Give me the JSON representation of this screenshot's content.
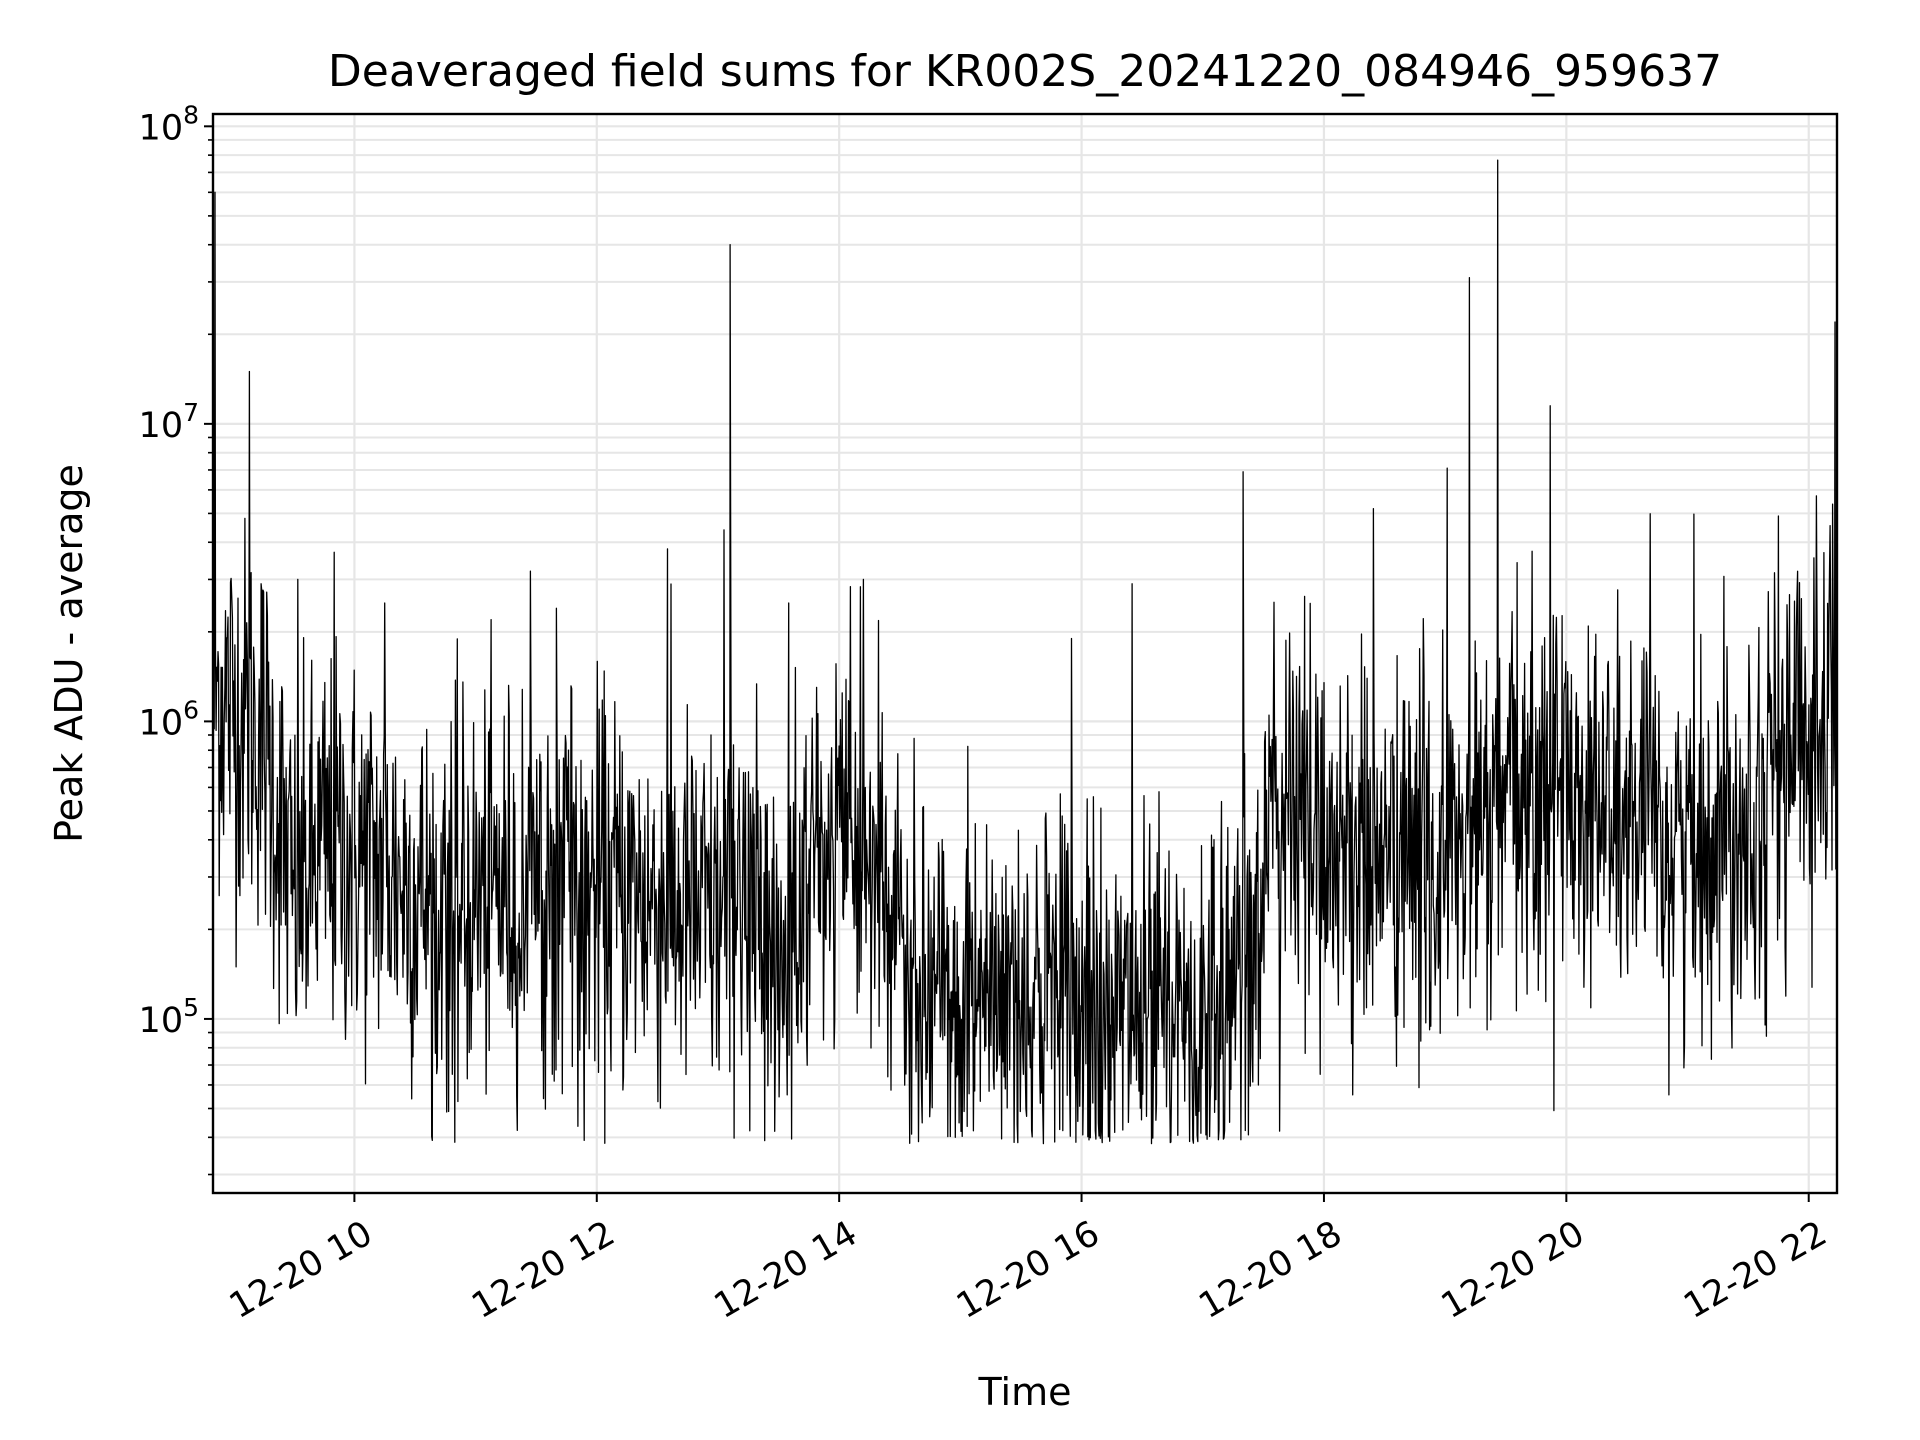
{
  "chart_data": {
    "type": "line",
    "title": "Deaveraged field sums for KR002S_20241220_084946_959637",
    "xlabel": "Time",
    "ylabel": "Peak ADU - average",
    "y_scale": "log",
    "ylim": [
      26000,
      110000000
    ],
    "xlim": [
      "2024-12-20 08:50",
      "2024-12-20 22:14"
    ],
    "grid": true,
    "x_ticks": [
      {
        "value": "2024-12-20 10:00",
        "label": "12-20 10"
      },
      {
        "value": "2024-12-20 12:00",
        "label": "12-20 12"
      },
      {
        "value": "2024-12-20 14:00",
        "label": "12-20 14"
      },
      {
        "value": "2024-12-20 16:00",
        "label": "12-20 16"
      },
      {
        "value": "2024-12-20 18:00",
        "label": "12-20 18"
      },
      {
        "value": "2024-12-20 20:00",
        "label": "12-20 20"
      },
      {
        "value": "2024-12-20 22:00",
        "label": "12-20 22"
      }
    ],
    "y_ticks": [
      {
        "value": 100000,
        "base": "10",
        "exp": "5"
      },
      {
        "value": 1000000,
        "base": "10",
        "exp": "6"
      },
      {
        "value": 10000000,
        "base": "10",
        "exp": "7"
      },
      {
        "value": 100000000,
        "base": "10",
        "exp": "8"
      }
    ],
    "series": [
      {
        "color": "#000000",
        "baseline": [
          [
            "2024-12-20 08:50",
            1300000
          ],
          [
            "2024-12-20 09:15",
            900000
          ],
          [
            "2024-12-20 09:30",
            250000
          ],
          [
            "2024-12-20 09:45",
            380000
          ],
          [
            "2024-12-20 10:15",
            330000
          ],
          [
            "2024-12-20 10:45",
            230000
          ],
          [
            "2024-12-20 11:15",
            280000
          ],
          [
            "2024-12-20 12:00",
            270000
          ],
          [
            "2024-12-20 12:30",
            250000
          ],
          [
            "2024-12-20 13:00",
            210000
          ],
          [
            "2024-12-20 13:15",
            220000
          ],
          [
            "2024-12-20 13:30",
            180000
          ],
          [
            "2024-12-20 14:00",
            420000
          ],
          [
            "2024-12-20 14:20",
            280000
          ],
          [
            "2024-12-20 14:40",
            110000
          ],
          [
            "2024-12-20 15:30",
            130000
          ],
          [
            "2024-12-20 16:00",
            110000
          ],
          [
            "2024-12-20 16:30",
            95000
          ],
          [
            "2024-12-20 17:00",
            100000
          ],
          [
            "2024-12-20 17:20",
            160000
          ],
          [
            "2024-12-20 17:40",
            550000
          ],
          [
            "2024-12-20 18:00",
            400000
          ],
          [
            "2024-12-20 18:30",
            350000
          ],
          [
            "2024-12-20 19:00",
            330000
          ],
          [
            "2024-12-20 19:30",
            500000
          ],
          [
            "2024-12-20 20:00",
            650000
          ],
          [
            "2024-12-20 20:30",
            450000
          ],
          [
            "2024-12-20 21:00",
            380000
          ],
          [
            "2024-12-20 21:30",
            520000
          ],
          [
            "2024-12-20 22:00",
            900000
          ],
          [
            "2024-12-20 22:14",
            1800000
          ]
        ],
        "spikes": [
          [
            "2024-12-20 08:51",
            60000000
          ],
          [
            "2024-12-20 09:08",
            15000000
          ],
          [
            "2024-12-20 09:32",
            3000000
          ],
          [
            "2024-12-20 09:50",
            3700000
          ],
          [
            "2024-12-20 10:15",
            2500000
          ],
          [
            "2024-12-20 11:40",
            2400000
          ],
          [
            "2024-12-20 12:35",
            3800000
          ],
          [
            "2024-12-20 13:03",
            4400000
          ],
          [
            "2024-12-20 13:06",
            40000000
          ],
          [
            "2024-12-20 13:35",
            2500000
          ],
          [
            "2024-12-20 14:12",
            3000000
          ],
          [
            "2024-12-20 15:55",
            1900000
          ],
          [
            "2024-12-20 16:25",
            2900000
          ],
          [
            "2024-12-20 17:20",
            6900000
          ],
          [
            "2024-12-20 19:01",
            7100000
          ],
          [
            "2024-12-20 19:12",
            31000000
          ],
          [
            "2024-12-20 19:26",
            77000000
          ],
          [
            "2024-12-20 19:52",
            11500000
          ],
          [
            "2024-12-20 21:45",
            4900000
          ],
          [
            "2024-12-20 22:13",
            22000000
          ]
        ],
        "min_value": 38000
      }
    ]
  }
}
